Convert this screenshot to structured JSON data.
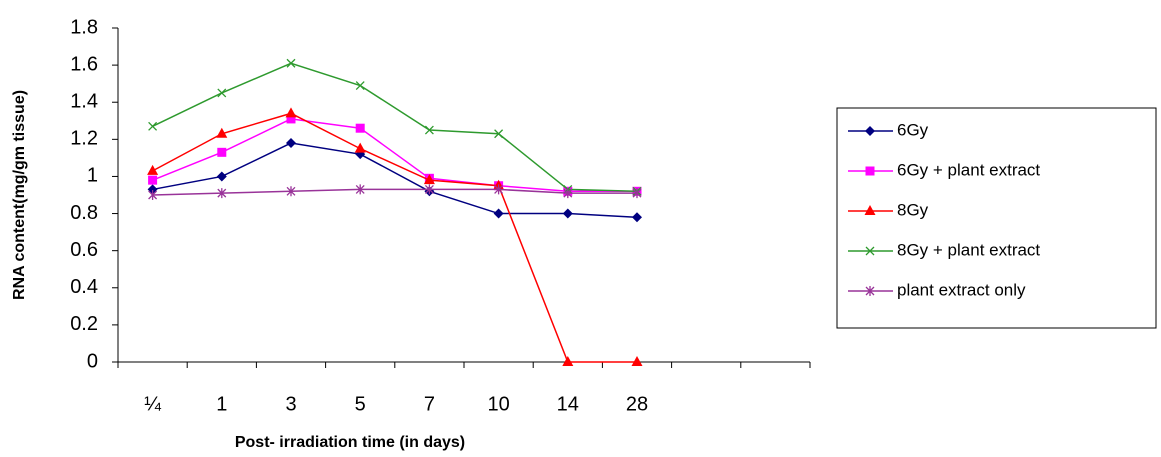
{
  "chart_data": {
    "type": "line",
    "x_label": "Post- irradiation time (in days)",
    "y_label": "RNA content(mg/gm tissue)",
    "categories": [
      "¼",
      "1",
      "3",
      "5",
      "7",
      "10",
      "14",
      "28",
      null,
      null
    ],
    "series": [
      {
        "name": "6Gy",
        "color": "#000080",
        "marker": "diamond",
        "values": [
          0.93,
          1.0,
          1.18,
          1.12,
          0.92,
          0.8,
          0.8,
          0.78,
          null,
          null
        ]
      },
      {
        "name": "6Gy + plant extract",
        "color": "#ff00ff",
        "marker": "square",
        "values": [
          0.98,
          1.13,
          1.31,
          1.26,
          0.99,
          0.95,
          0.92,
          0.92,
          null,
          null
        ]
      },
      {
        "name": "8Gy",
        "color": "#ff0000",
        "marker": "triangle",
        "values": [
          1.03,
          1.23,
          1.34,
          1.15,
          0.98,
          0.95,
          0,
          0,
          null,
          null
        ]
      },
      {
        "name": "8Gy + plant extract",
        "color": "#2e9a2e",
        "marker": "x",
        "values": [
          1.27,
          1.45,
          1.61,
          1.49,
          1.25,
          1.23,
          0.93,
          0.92,
          null,
          null
        ]
      },
      {
        "name": "plant extract only",
        "color": "#993399",
        "marker": "star",
        "values": [
          0.9,
          0.91,
          0.92,
          0.93,
          0.93,
          0.93,
          0.91,
          0.91,
          null,
          null
        ]
      }
    ],
    "ylim": [
      0,
      1.8
    ],
    "yticks": [
      0,
      0.2,
      0.4,
      0.6,
      0.8,
      1,
      1.2,
      1.4,
      1.6,
      1.8
    ],
    "grid": false,
    "legend": "right"
  }
}
